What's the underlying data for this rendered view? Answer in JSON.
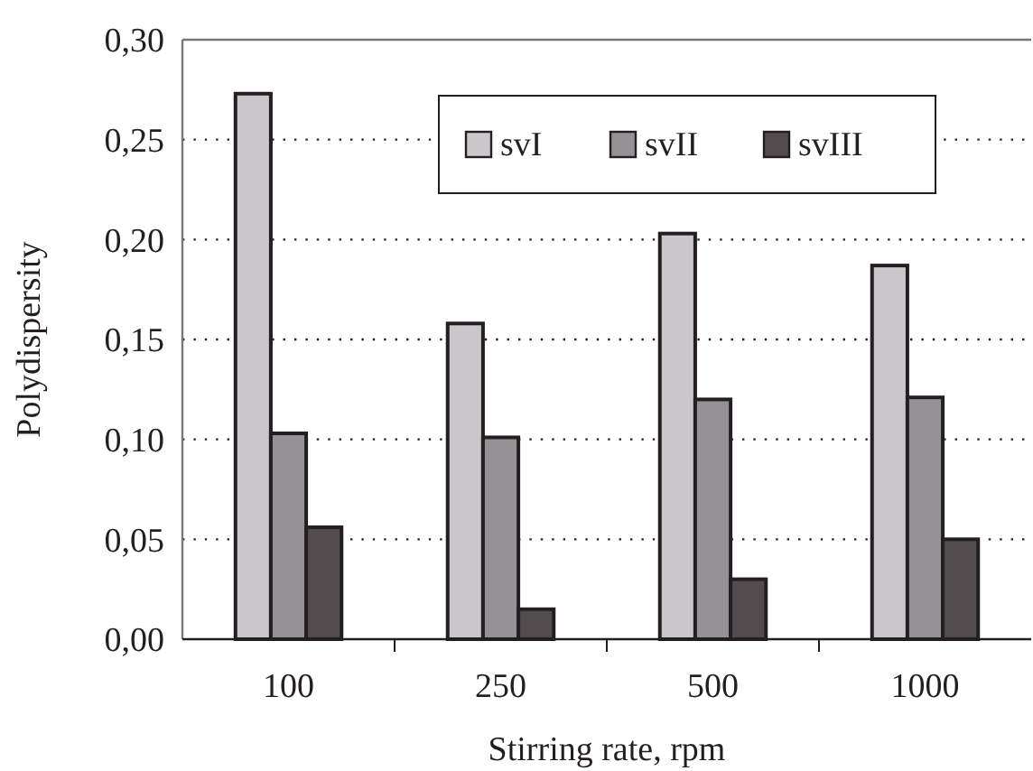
{
  "chart_data": {
    "type": "bar",
    "xlabel": "Stirring rate, rpm",
    "ylabel": "Polydispersity",
    "categories": [
      "100",
      "250",
      "500",
      "1000"
    ],
    "series": [
      {
        "name": "svI",
        "color": "#c9c7c9",
        "values": [
          0.273,
          0.158,
          0.203,
          0.187
        ]
      },
      {
        "name": "svII",
        "color": "#949294",
        "values": [
          0.103,
          0.101,
          0.12,
          0.121
        ]
      },
      {
        "name": "svIII",
        "color": "#524c4e",
        "values": [
          0.056,
          0.015,
          0.03,
          0.05
        ]
      }
    ],
    "ylim": [
      0,
      0.3
    ],
    "yticks": [
      {
        "value": 0,
        "label": "0,00"
      },
      {
        "value": 0.05,
        "label": "0,05"
      },
      {
        "value": 0.1,
        "label": "0,10"
      },
      {
        "value": 0.15,
        "label": "0,15"
      },
      {
        "value": 0.2,
        "label": "0,20"
      },
      {
        "value": 0.25,
        "label": "0,25"
      },
      {
        "value": 0.3,
        "label": "0,30"
      }
    ],
    "grid": "y",
    "legend": "top"
  }
}
